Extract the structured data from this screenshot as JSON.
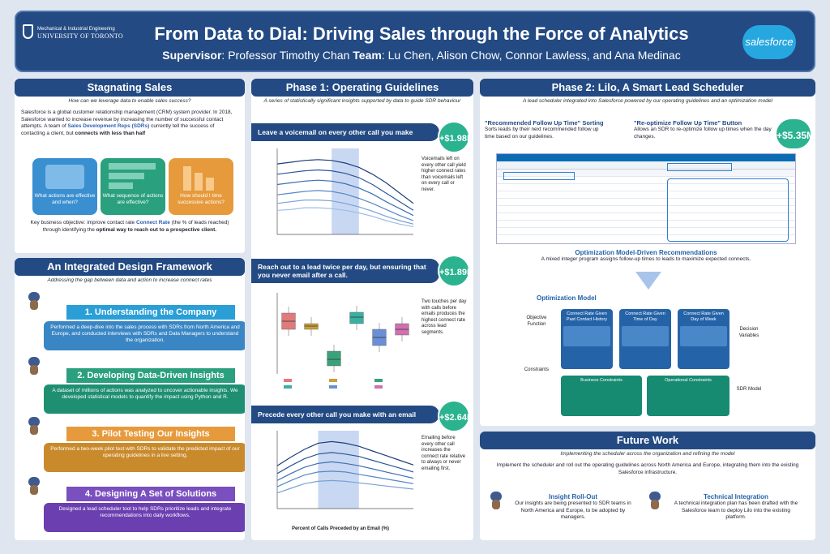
{
  "header": {
    "title": "From Data to Dial: Driving Sales through the Force of Analytics",
    "supervisor_label": "Supervisor",
    "supervisor": ": Professor Timothy Chan",
    "team_label": "Team",
    "team": ": Lu Chen, Alison Chow, Connor Lawless, and Ana Medinac",
    "uoft_line1": "Mechanical & Industrial Engineering",
    "uoft_line2": "UNIVERSITY OF TORONTO",
    "salesforce": "salesforce"
  },
  "stagnating": {
    "title": "Stagnating Sales",
    "subtitle": "How can we leverage data to enable sales success?",
    "body1": "Salesforce is a global customer relationship management (CRM) system provider. In 2018, Salesforce wanted to increase revenue by increasing the number of successful contact attempts. A team of",
    "link": "Sales Development Reps (SDRs)",
    "body2": "currently tell the success of contacting a client, but",
    "bold": "connects with less than half",
    "cards": [
      {
        "label": "What actions are effective and when?",
        "color": "#3a8fd0"
      },
      {
        "label": "What sequence of actions are effective?",
        "color": "#2aa07e"
      },
      {
        "label": "How should I time successive actions?",
        "color": "#e69a3c"
      }
    ],
    "foot1": "Key business objective: improve contact rate",
    "foot_link": "Connect Rate",
    "foot2": "(the % of leads reached) through identifying the",
    "foot_bold": "optimal way to reach out to a prospective client."
  },
  "framework": {
    "title": "An Integrated Design Framework",
    "subtitle": "Addressing the gap between data and action to increase connect rates",
    "steps": [
      {
        "label": "1. Understanding the Company",
        "text": "Performed a deep-dive into the sales process with SDRs from North America and Europe, and conducted interviews with SDRs and Data Managers to understand the organization.",
        "color": "#2a9fd6",
        "box": "#3a86c4"
      },
      {
        "label": "2. Developing Data-Driven Insights",
        "text": "A dataset of millions of actions was analyzed to uncover actionable insights. We developed statistical models to quantify the impact using Python and R.",
        "color": "#2aa07e",
        "box": "#1f8f72"
      },
      {
        "label": "3. Pilot Testing Our Insights",
        "text": "Performed a two-week pilot test with SDRs to validate the predicted impact of our operating guidelines in a live setting.",
        "color": "#e69a3c",
        "box": "#c98a2c"
      },
      {
        "label": "4. Designing A Set of Solutions",
        "text": "Designed a lead scheduler tool to help SDRs prioritize leads and integrate recommendations into daily workflows.",
        "color": "#7a4fc0",
        "box": "#6b3fb0"
      }
    ]
  },
  "phase1": {
    "title": "Phase 1: Operating Guidelines",
    "subtitle": "A series of statistically significant insights supported by data to guide SDR behaviour",
    "guidelines": [
      {
        "heading": "Leave a voicemail on every other call you make",
        "amount": "+$1.98M",
        "note": "Voicemails left on every other call yield higher connect rates than voicemails left on every call or never."
      },
      {
        "heading": "Reach out to a lead twice per day, but ensuring that you never email after a call.",
        "amount": "+$1.89M",
        "note": "Two touches per day with calls before emails produces the highest connect rate across lead segments."
      },
      {
        "heading": "Precede every other call you make with an email",
        "amount": "+$2.64M",
        "note": "Emailing before every other call increases the connect rate relative to always or never emailing first."
      }
    ],
    "chart3_xlabel": "Percent of Calls Preceded by an Email (%)"
  },
  "phase2": {
    "title": "Phase 2: Lilo, A Smart Lead Scheduler",
    "subtitle": "A lead scheduler integrated into Salesforce powered by our operating guidelines and an optimization model",
    "feat1_title": "\"Recommended Follow Up Time\" Sorting",
    "feat1_text": "Sorts leads by their next recommended follow up time based on our guidelines.",
    "feat2_title": "\"Re-optimize Follow Up Time\" Button",
    "feat2_text": "Allows an SDR to re-optimize follow up times when the day changes.",
    "amount": "+$5.35M",
    "opt_title": "Optimization Model-Driven Recommendations",
    "opt_text": "A mixed integer program assigns follow-up times to leads to maximize expected connects.",
    "model_title": "Optimization Model",
    "objective": "Objective Function",
    "constraints": "Constraints",
    "decision": "Decision Variables",
    "sdr": "SDR Model",
    "boxes": [
      "Connect Rate Given Past Contact History",
      "Connect Rate Given Time of Day",
      "Connect Rate Given Day of Week"
    ],
    "cons": [
      "Business Constraints",
      "Operational Constraints"
    ]
  },
  "future": {
    "title": "Future Work",
    "subtitle": "Implementing the scheduler across the organization and refining the model",
    "intro": "Implement the scheduler and roll out the operating guidelines across North America and Europe, integrating them into the existing Salesforce infrastructure.",
    "col1_title": "Insight Roll-Out",
    "col1_text": "Our insights are being presented to SDR teams in North America and Europe, to be adopted by managers.",
    "col2_title": "Technical Integration",
    "col2_text": "A technical integration plan has been drafted with the Salesforce team to deploy Lilo into the existing platform."
  },
  "chart_data": [
    {
      "type": "line",
      "title": "Leave a voicemail on every other call you make",
      "x": [
        0,
        10,
        20,
        30,
        40,
        50,
        60,
        70,
        80,
        90,
        100
      ],
      "series": [
        {
          "values": [
            0.82,
            0.84,
            0.86,
            0.87,
            0.86,
            0.83,
            0.78,
            0.7,
            0.6,
            0.48,
            0.36
          ]
        },
        {
          "values": [
            0.7,
            0.72,
            0.74,
            0.75,
            0.74,
            0.71,
            0.66,
            0.58,
            0.48,
            0.38,
            0.28
          ]
        },
        {
          "values": [
            0.58,
            0.6,
            0.62,
            0.63,
            0.62,
            0.59,
            0.54,
            0.47,
            0.38,
            0.3,
            0.22
          ]
        },
        {
          "values": [
            0.46,
            0.48,
            0.5,
            0.51,
            0.5,
            0.47,
            0.42,
            0.36,
            0.29,
            0.22,
            0.16
          ]
        },
        {
          "values": [
            0.36,
            0.38,
            0.4,
            0.4,
            0.39,
            0.36,
            0.32,
            0.27,
            0.21,
            0.16,
            0.12
          ]
        },
        {
          "values": [
            0.28,
            0.29,
            0.31,
            0.31,
            0.3,
            0.28,
            0.25,
            0.21,
            0.16,
            0.12,
            0.09
          ]
        }
      ],
      "highlight": [
        40,
        60
      ],
      "ylim": [
        0,
        1
      ]
    },
    {
      "type": "box",
      "title": "Reach out to a lead twice per day",
      "boxes": [
        {
          "q1": 0.55,
          "median": 0.65,
          "q3": 0.75,
          "color": "#e07b7b"
        },
        {
          "q1": 0.55,
          "median": 0.59,
          "q3": 0.62,
          "color": "#c6a03a"
        },
        {
          "q1": 0.1,
          "median": 0.18,
          "q3": 0.28,
          "color": "#3aa27a"
        },
        {
          "q1": 0.62,
          "median": 0.7,
          "q3": 0.76,
          "color": "#3ab0a0"
        },
        {
          "q1": 0.35,
          "median": 0.45,
          "q3": 0.55,
          "color": "#6a8fd6"
        },
        {
          "q1": 0.48,
          "median": 0.55,
          "q3": 0.62,
          "color": "#d070b0"
        }
      ],
      "ylim": [
        0,
        1
      ]
    },
    {
      "type": "line",
      "title": "Precede every other call you make with an email",
      "xlabel": "Percent of Calls Preceded by an Email (%)",
      "x": [
        0,
        10,
        20,
        30,
        40,
        50,
        60,
        70,
        80,
        90,
        100
      ],
      "series": [
        {
          "values": [
            0.55,
            0.66,
            0.76,
            0.84,
            0.86,
            0.84,
            0.8,
            0.74,
            0.68,
            0.62,
            0.56
          ]
        },
        {
          "values": [
            0.45,
            0.55,
            0.64,
            0.7,
            0.72,
            0.7,
            0.67,
            0.62,
            0.57,
            0.52,
            0.47
          ]
        },
        {
          "values": [
            0.36,
            0.45,
            0.53,
            0.58,
            0.6,
            0.58,
            0.55,
            0.51,
            0.47,
            0.43,
            0.39
          ]
        },
        {
          "values": [
            0.28,
            0.36,
            0.43,
            0.47,
            0.48,
            0.47,
            0.44,
            0.41,
            0.38,
            0.35,
            0.32
          ]
        },
        {
          "values": [
            0.2,
            0.26,
            0.32,
            0.35,
            0.36,
            0.35,
            0.33,
            0.31,
            0.29,
            0.27,
            0.25
          ]
        }
      ],
      "highlight": [
        30,
        60
      ],
      "ylim": [
        0,
        1
      ]
    }
  ],
  "colors": {
    "navy": "#234a83",
    "money": "#2bb390",
    "accent": "#2d5fb0"
  }
}
